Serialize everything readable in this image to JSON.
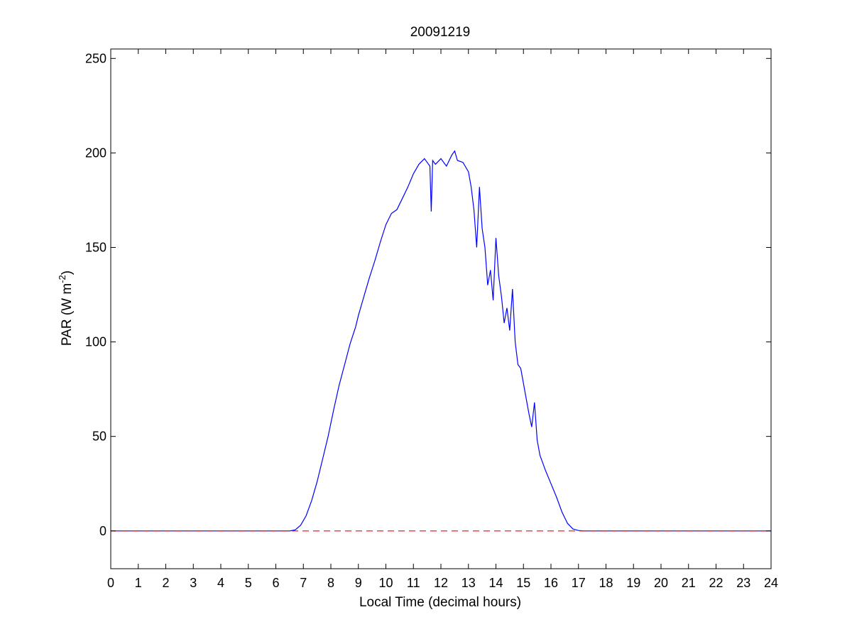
{
  "chart_data": {
    "type": "line",
    "title": "20091219",
    "xlabel": "Local Time (decimal hours)",
    "ylabel": {
      "main": "PAR (W m",
      "sup": "-2",
      "end": ")"
    },
    "xlim": [
      0,
      24
    ],
    "ylim": [
      -20,
      255
    ],
    "x_ticks": [
      0,
      1,
      2,
      3,
      4,
      5,
      6,
      7,
      8,
      9,
      10,
      11,
      12,
      13,
      14,
      15,
      16,
      17,
      18,
      19,
      20,
      21,
      22,
      23,
      24
    ],
    "y_ticks": [
      0,
      50,
      100,
      150,
      200,
      250
    ],
    "grid": false,
    "series": [
      {
        "color": "#0000ff",
        "style": "solid",
        "x": [
          0,
          6.0,
          6.5,
          6.7,
          6.9,
          7.1,
          7.3,
          7.5,
          7.7,
          7.9,
          8.1,
          8.3,
          8.5,
          8.7,
          8.9,
          9.0,
          9.2,
          9.4,
          9.6,
          9.8,
          10.0,
          10.2,
          10.4,
          10.6,
          10.8,
          11.0,
          11.2,
          11.4,
          11.5,
          11.6,
          11.65,
          11.7,
          11.8,
          12.0,
          12.2,
          12.4,
          12.5,
          12.6,
          12.8,
          13.0,
          13.1,
          13.2,
          13.3,
          13.4,
          13.5,
          13.6,
          13.7,
          13.8,
          13.9,
          14.0,
          14.1,
          14.2,
          14.3,
          14.4,
          14.5,
          14.6,
          14.7,
          14.8,
          14.9,
          15.0,
          15.1,
          15.2,
          15.3,
          15.4,
          15.5,
          15.6,
          15.7,
          15.8,
          16.0,
          16.2,
          16.4,
          16.6,
          16.8,
          17.0,
          17.2,
          17.4,
          24
        ],
        "y": [
          0,
          0,
          0,
          0.5,
          3,
          8,
          16,
          26,
          38,
          50,
          64,
          77,
          88,
          99,
          108,
          114,
          124,
          134,
          143,
          153,
          162,
          168,
          170,
          176,
          182,
          189,
          194,
          197,
          195,
          193,
          169,
          196,
          194,
          197,
          193,
          199,
          201,
          196,
          195,
          190,
          182,
          170,
          150,
          182,
          160,
          150,
          130,
          138,
          122,
          155,
          135,
          124,
          110,
          118,
          106,
          128,
          100,
          88,
          86,
          78,
          70,
          62,
          55,
          68,
          48,
          40,
          36,
          32,
          25,
          18,
          10,
          4,
          1,
          0.2,
          0,
          0,
          0
        ]
      },
      {
        "color": "#ff0000",
        "style": "dashed",
        "x": [
          0,
          24
        ],
        "y": [
          0,
          0
        ]
      }
    ]
  }
}
